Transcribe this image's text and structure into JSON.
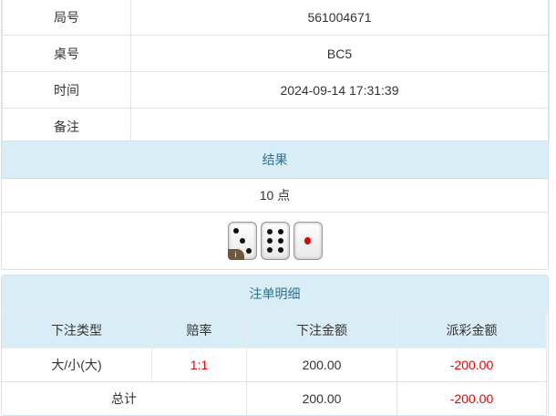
{
  "info": [
    {
      "label": "局号",
      "value": "561004671"
    },
    {
      "label": "桌号",
      "value": "BC5"
    },
    {
      "label": "时间",
      "value": "2024-09-14 17:31:39"
    },
    {
      "label": "备注",
      "value": ""
    }
  ],
  "result": {
    "title": "结果",
    "points": "10 点",
    "dice": [
      3,
      6,
      1
    ],
    "badge": "i"
  },
  "bets": {
    "title": "注单明细",
    "headers": [
      "下注类型",
      "赔率",
      "下注金额",
      "派彩金额"
    ],
    "rows": [
      {
        "type": "大/小(大)",
        "odds": "1:1",
        "amount": "200.00",
        "payout": "-200.00"
      }
    ],
    "total": {
      "label": "总计",
      "amount": "200.00",
      "payout": "-200.00"
    }
  },
  "colors": {
    "header_bg": "#d9edf7",
    "header_text": "#31708f",
    "negative": "#e00000"
  }
}
